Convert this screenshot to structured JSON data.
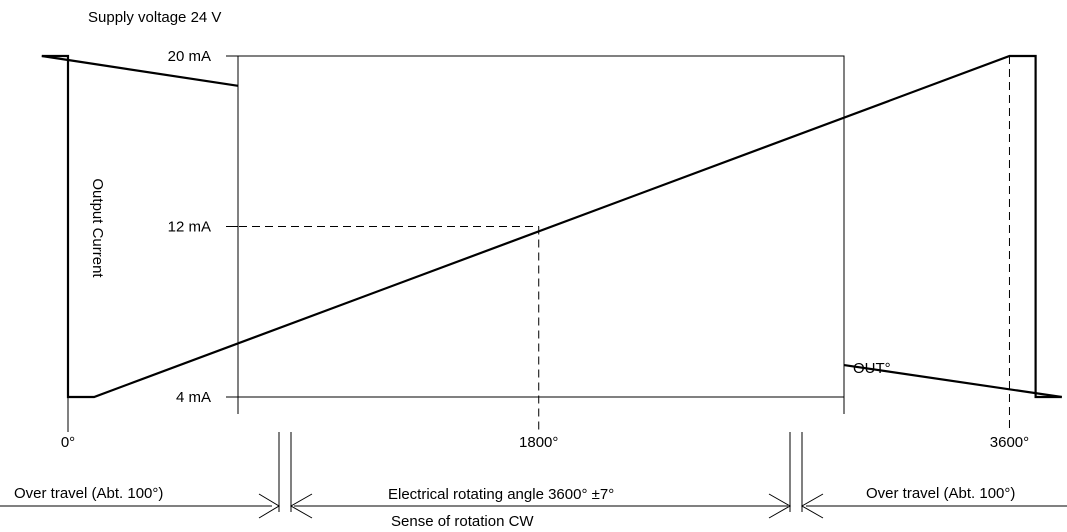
{
  "chart_data": {
    "type": "line",
    "supply_label": "Supply voltage 24 V",
    "ylabel": "Output Current",
    "series_label": "OUT°",
    "y_ticks": [
      {
        "value": 20,
        "label": "20 mA"
      },
      {
        "value": 12,
        "label": "12 mA"
      },
      {
        "value": 4,
        "label": "4 mA"
      }
    ],
    "x_ticks": [
      {
        "value": 0,
        "label": "0°"
      },
      {
        "value": 1800,
        "label": "1800°"
      },
      {
        "value": 3600,
        "label": "3600°"
      }
    ],
    "x_points": [
      -100,
      0,
      0,
      100,
      3600,
      3700,
      3700,
      3800
    ],
    "y_points": [
      20,
      20,
      4,
      4,
      20,
      20,
      4,
      4
    ],
    "xlim": [
      -260,
      3820
    ],
    "ylim": [
      4,
      20
    ],
    "annotations": {
      "over_travel_left": "Over travel (Abt. 100°)",
      "electrical_angle": "Electrical rotating angle 3600° ±7°",
      "over_travel_right": "Over travel (Abt. 100°)",
      "rotation": "Sense of rotation CW"
    }
  }
}
